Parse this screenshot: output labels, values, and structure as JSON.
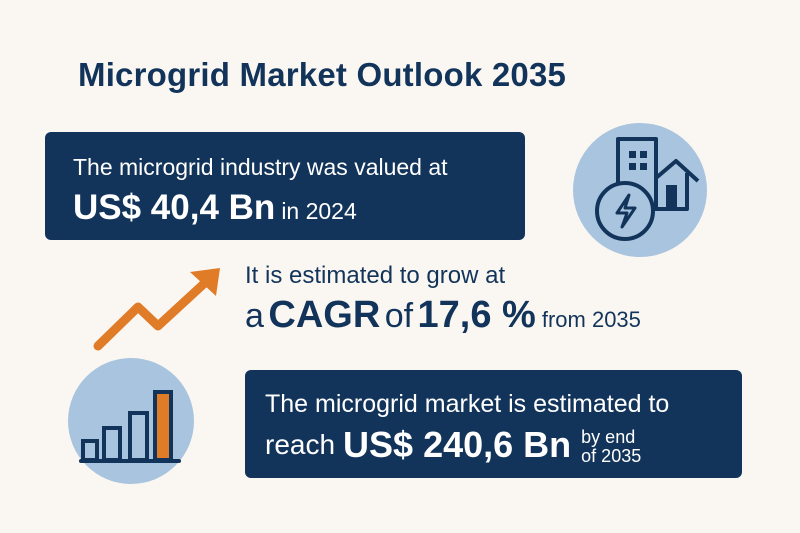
{
  "title": "Microgrid Market Outlook 2035",
  "valued": {
    "line1": "The microgrid industry was valued at",
    "amount": "US$ 40,4 Bn",
    "year": "in 2024"
  },
  "growth": {
    "line1": "It is estimated to grow at",
    "prefix": "a",
    "cagr_label": "CAGR",
    "of": "of",
    "rate": "17,6 %",
    "suffix": "from 2035"
  },
  "forecast": {
    "line1": "The microgrid market is estimated to",
    "reach": "reach",
    "amount": "US$ 240,6 Bn",
    "end1": "by end",
    "end2": "of 2035"
  },
  "icons": [
    "building-house-power-icon",
    "growth-arrow-icon",
    "bar-chart-icon"
  ],
  "colors": {
    "navy": "#13345a",
    "light_blue": "#a9c4de",
    "orange": "#e07b28",
    "background": "#faf7f2"
  }
}
